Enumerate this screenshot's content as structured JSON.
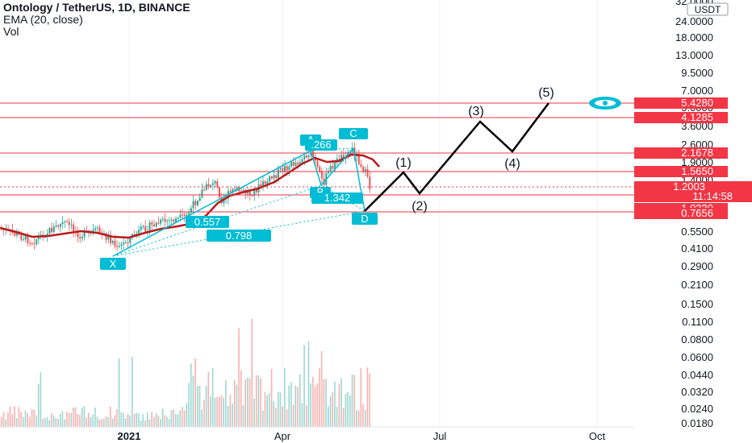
{
  "header": {
    "symbol_line": "Ontology / TetherUS, 1D, BINANCE",
    "ema_line": "EMA (20, close)",
    "vol_line": "Vol"
  },
  "price_scale": {
    "unit": "USDT",
    "top_cut_label": "32.0000",
    "ticks": [
      "24.0000",
      "18.0000",
      "13.0000",
      "9.5000",
      "7.0000",
      "5.0000",
      "3.6000",
      "2.6000",
      "1.9000",
      "1.4000",
      "0.5500",
      "0.4100",
      "0.2900",
      "0.2100",
      "0.1500",
      "0.1100",
      "0.0800",
      "0.0600",
      "0.0440",
      "0.0320",
      "0.0240",
      "0.0180"
    ]
  },
  "time_axis": {
    "labels": [
      "2021",
      "Apr",
      "Jul",
      "Oct"
    ]
  },
  "horizontal_levels": [
    {
      "label": "5.4280",
      "color": "#f23645"
    },
    {
      "label": "4.1285",
      "color": "#f23645"
    },
    {
      "label": "2.1678",
      "color": "#f23645"
    },
    {
      "label": "1.5650",
      "color": "#f23645"
    },
    {
      "label": "1.0330",
      "color": "#f23645"
    },
    {
      "label": "0.7656",
      "color": "#f23645"
    }
  ],
  "last_price": {
    "price": "1.2003",
    "countdown": "11:14:58",
    "color": "#f23645"
  },
  "harmonic_pattern": {
    "color": "#00bcd4",
    "points": [
      "X",
      "A",
      "B",
      "C",
      "D"
    ],
    "ratios": [
      "0.557",
      "0.798",
      ".266",
      "1.342"
    ]
  },
  "elliott_wave": {
    "labels": [
      "(1)",
      "(2)",
      "(3)",
      "(4)",
      "(5)"
    ]
  },
  "colors": {
    "up": "#26a69a",
    "down": "#ef5350",
    "ema": "#b71c1c",
    "label_red": "#f23645",
    "pattern": "#00bcd4"
  },
  "chart_data": {
    "type": "candlestick",
    "title": "Ontology / TetherUS, 1D, BINANCE",
    "indicators": [
      "EMA (20, close)",
      "Vol"
    ],
    "y_scale": "log",
    "approx_price_path": [
      {
        "date": "2020-09",
        "price": 0.66
      },
      {
        "date": "2020-10",
        "price": 0.58
      },
      {
        "date": "2020-11",
        "price": 0.63
      },
      {
        "date": "2020-12",
        "price": 0.55
      },
      {
        "date": "2020-12-26",
        "price": 0.43
      },
      {
        "date": "2021-01-20",
        "price": 0.6
      },
      {
        "date": "2021-02-10",
        "price": 0.78
      },
      {
        "date": "2021-02-20",
        "price": 1.3
      },
      {
        "date": "2021-03-15",
        "price": 1.2
      },
      {
        "date": "2021-04-05",
        "price": 1.8
      },
      {
        "date": "2021-04-16",
        "price": 2.27
      },
      {
        "date": "2021-04-24",
        "price": 1.31
      },
      {
        "date": "2021-05-06",
        "price": 2.4
      },
      {
        "date": "2021-05-18",
        "price": 1.2
      }
    ],
    "projection": [
      {
        "label": "(1)",
        "price": 1.55
      },
      {
        "label": "(2)",
        "price": 1.15
      },
      {
        "label": "(3)",
        "price": 3.8
      },
      {
        "label": "(4)",
        "price": 2.3
      },
      {
        "label": "(5)",
        "price": 5.43
      }
    ]
  }
}
